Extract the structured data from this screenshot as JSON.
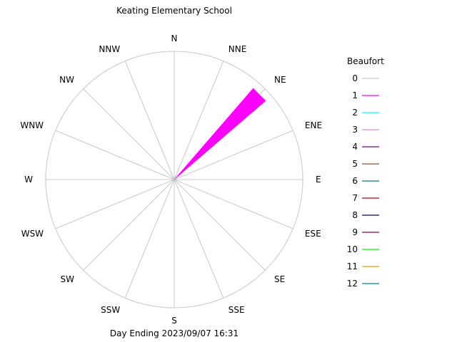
{
  "chart_data": {
    "type": "windrose",
    "title": "Keating Elementary School",
    "footer": "Day Ending 2023/09/07 16:31",
    "directions": [
      "N",
      "NNE",
      "NE",
      "ENE",
      "E",
      "ESE",
      "SE",
      "SSE",
      "S",
      "SSW",
      "SW",
      "WSW",
      "W",
      "WNW",
      "NW",
      "NNW"
    ],
    "legend_title": "Beaufort",
    "legend_position": "right",
    "grid": true,
    "series": [
      {
        "name": "0",
        "color": "#c8c8c8",
        "values": [
          0,
          0,
          0,
          0,
          0,
          0,
          0,
          0,
          0,
          0,
          0,
          0,
          0,
          0,
          0,
          0
        ]
      },
      {
        "name": "1",
        "color": "#ff00ff",
        "values": [
          0,
          0,
          0.94,
          0,
          0,
          0,
          0,
          0,
          0,
          0,
          0,
          0,
          0,
          0,
          0,
          0
        ]
      },
      {
        "name": "2",
        "color": "#00ffff",
        "values": [
          0,
          0,
          0,
          0,
          0,
          0,
          0,
          0,
          0,
          0,
          0,
          0,
          0,
          0,
          0,
          0
        ]
      },
      {
        "name": "3",
        "color": "#ff80c0",
        "values": [
          0,
          0,
          0,
          0,
          0,
          0,
          0,
          0,
          0,
          0,
          0,
          0,
          0,
          0,
          0,
          0
        ]
      },
      {
        "name": "4",
        "color": "#800080",
        "values": [
          0,
          0,
          0,
          0,
          0,
          0,
          0,
          0,
          0,
          0,
          0,
          0,
          0,
          0,
          0,
          0
        ]
      },
      {
        "name": "5",
        "color": "#a0522d",
        "values": [
          0,
          0,
          0,
          0,
          0,
          0,
          0,
          0,
          0,
          0,
          0,
          0,
          0,
          0,
          0,
          0
        ]
      },
      {
        "name": "6",
        "color": "#008080",
        "values": [
          0,
          0,
          0,
          0,
          0,
          0,
          0,
          0,
          0,
          0,
          0,
          0,
          0,
          0,
          0,
          0
        ]
      },
      {
        "name": "7",
        "color": "#c00000",
        "values": [
          0,
          0,
          0,
          0,
          0,
          0,
          0,
          0,
          0,
          0,
          0,
          0,
          0,
          0,
          0,
          0
        ]
      },
      {
        "name": "8",
        "color": "#000080",
        "values": [
          0,
          0,
          0,
          0,
          0,
          0,
          0,
          0,
          0,
          0,
          0,
          0,
          0,
          0,
          0,
          0
        ]
      },
      {
        "name": "9",
        "color": "#a00030",
        "values": [
          0,
          0,
          0,
          0,
          0,
          0,
          0,
          0,
          0,
          0,
          0,
          0,
          0,
          0,
          0,
          0
        ]
      },
      {
        "name": "10",
        "color": "#00ff00",
        "values": [
          0,
          0,
          0,
          0,
          0,
          0,
          0,
          0,
          0,
          0,
          0,
          0,
          0,
          0,
          0,
          0
        ]
      },
      {
        "name": "11",
        "color": "#ff8c00",
        "values": [
          0,
          0,
          0,
          0,
          0,
          0,
          0,
          0,
          0,
          0,
          0,
          0,
          0,
          0,
          0,
          0
        ]
      },
      {
        "name": "12",
        "color": "#008b8b",
        "values": [
          0,
          0,
          0,
          0,
          0,
          0,
          0,
          0,
          0,
          0,
          0,
          0,
          0,
          0,
          0,
          0
        ]
      }
    ]
  }
}
